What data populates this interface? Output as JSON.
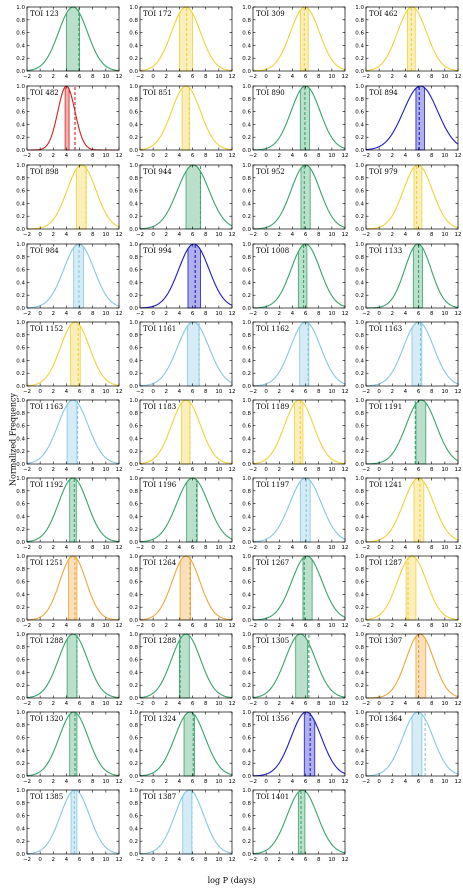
{
  "figure": {
    "xlabel": "log P (days)",
    "ylabel": "Normalized Frequency"
  },
  "chart_data": {
    "type": "line",
    "xlim": [
      -2,
      12
    ],
    "ylim": [
      0,
      1.0
    ],
    "x_ticks": [
      -2,
      0,
      2,
      4,
      6,
      8,
      10,
      12
    ],
    "y_ticks": [
      0.0,
      0.2,
      0.4,
      0.6,
      0.8,
      1.0
    ],
    "x_tick_labels": [
      "−2",
      "0",
      "2",
      "4",
      "6",
      "8",
      "10",
      "12"
    ],
    "y_tick_labels": [
      "0.0",
      "0.2",
      "0.4",
      "0.6",
      "0.8",
      "1.0"
    ],
    "grid": false,
    "colors": {
      "green": "#3aa36a",
      "yellow": "#f2d13a",
      "lightblue": "#86c7e3",
      "blue": "#1c1cc9",
      "red": "#d62020",
      "orange": "#eea63c"
    },
    "panels": [
      {
        "label": "TOI 123",
        "color": "green",
        "mu": 5.0,
        "sigma": 2.2,
        "band": [
          4.0,
          6.0
        ],
        "dashed": 5.9
      },
      {
        "label": "TOI 172",
        "color": "yellow",
        "mu": 5.0,
        "sigma": 2.2,
        "band": [
          4.0,
          6.0
        ],
        "dashed": 5.1
      },
      {
        "label": "TOI 309",
        "color": "yellow",
        "mu": 5.9,
        "sigma": 2.2,
        "band": [
          5.2,
          6.4
        ],
        "dashed": 5.8
      },
      {
        "label": "TOI 462",
        "color": "yellow",
        "mu": 5.0,
        "sigma": 2.2,
        "band": [
          4.3,
          5.5
        ],
        "dashed": 4.9
      },
      {
        "label": "TOI 482",
        "color": "red",
        "mu": 4.0,
        "sigma": 1.3,
        "band": [
          3.8,
          4.4
        ],
        "dashed": 5.3
      },
      {
        "label": "TOI 851",
        "color": "yellow",
        "mu": 5.0,
        "sigma": 2.2,
        "band": [
          4.4,
          5.5
        ],
        "dashed": 5.5
      },
      {
        "label": "TOI 890",
        "color": "green",
        "mu": 6.0,
        "sigma": 2.2,
        "band": [
          5.2,
          6.6
        ],
        "dashed": 5.9
      },
      {
        "label": "TOI 894",
        "color": "blue",
        "mu": 6.3,
        "sigma": 2.6,
        "band": [
          5.6,
          6.9
        ],
        "dashed": 6.1
      },
      {
        "label": "TOI 898",
        "color": "yellow",
        "mu": 6.3,
        "sigma": 2.2,
        "band": [
          5.5,
          7.0
        ],
        "dashed": 7.0
      },
      {
        "label": "TOI 944",
        "color": "green",
        "mu": 6.1,
        "sigma": 2.4,
        "band": [
          5.0,
          7.2
        ],
        "dashed": 7.2
      },
      {
        "label": "TOI 952",
        "color": "green",
        "mu": 6.0,
        "sigma": 2.2,
        "band": [
          5.3,
          6.7
        ],
        "dashed": 5.8
      },
      {
        "label": "TOI 979",
        "color": "yellow",
        "mu": 5.9,
        "sigma": 2.2,
        "band": [
          5.3,
          6.5
        ],
        "dashed": 5.7
      },
      {
        "label": "TOI 984",
        "color": "lightblue",
        "mu": 5.9,
        "sigma": 2.3,
        "band": [
          5.1,
          6.6
        ],
        "dashed": 5.9
      },
      {
        "label": "TOI 994",
        "color": "blue",
        "mu": 6.2,
        "sigma": 2.3,
        "band": [
          5.3,
          7.2
        ],
        "dashed": 6.4
      },
      {
        "label": "TOI 1008",
        "color": "green",
        "mu": 6.0,
        "sigma": 2.2,
        "band": [
          4.9,
          6.2
        ],
        "dashed": 5.7
      },
      {
        "label": "TOI 1133",
        "color": "green",
        "mu": 5.9,
        "sigma": 2.0,
        "band": [
          5.2,
          6.6
        ],
        "dashed": 6.0
      },
      {
        "label": "TOI 1152",
        "color": "yellow",
        "mu": 5.3,
        "sigma": 2.2,
        "band": [
          4.6,
          6.1
        ],
        "dashed": 5.8
      },
      {
        "label": "TOI 1161",
        "color": "lightblue",
        "mu": 6.1,
        "sigma": 2.4,
        "band": [
          5.2,
          7.0
        ],
        "dashed": 7.0
      },
      {
        "label": "TOI 1162",
        "color": "lightblue",
        "mu": 6.0,
        "sigma": 2.3,
        "band": [
          5.1,
          6.5
        ],
        "dashed": 6.4
      },
      {
        "label": "TOI 1163",
        "color": "lightblue",
        "mu": 6.0,
        "sigma": 2.3,
        "band": [
          5.0,
          6.5
        ],
        "dashed": 6.3
      },
      {
        "label": "TOI 1163",
        "color": "lightblue",
        "mu": 5.0,
        "sigma": 2.3,
        "band": [
          4.1,
          5.6
        ],
        "dashed": 5.7
      },
      {
        "label": "TOI 1183",
        "color": "yellow",
        "mu": 5.0,
        "sigma": 2.2,
        "band": [
          4.3,
          5.6
        ],
        "dashed": 5.6
      },
      {
        "label": "TOI 1189",
        "color": "yellow",
        "mu": 5.0,
        "sigma": 2.2,
        "band": [
          4.3,
          5.6
        ],
        "dashed": 5.2
      },
      {
        "label": "TOI 1191",
        "color": "green",
        "mu": 6.4,
        "sigma": 2.3,
        "band": [
          5.6,
          7.1
        ],
        "dashed": 5.5
      },
      {
        "label": "TOI 1192",
        "color": "green",
        "mu": 5.0,
        "sigma": 2.2,
        "band": [
          4.5,
          5.5
        ],
        "dashed": 5.2
      },
      {
        "label": "TOI 1196",
        "color": "green",
        "mu": 6.0,
        "sigma": 2.4,
        "band": [
          5.1,
          6.7
        ],
        "dashed": 6.6
      },
      {
        "label": "TOI 1197",
        "color": "lightblue",
        "mu": 6.0,
        "sigma": 2.4,
        "band": [
          5.2,
          6.7
        ],
        "dashed": 6.1
      },
      {
        "label": "TOI 1241",
        "color": "yellow",
        "mu": 6.0,
        "sigma": 2.3,
        "band": [
          5.3,
          6.8
        ],
        "dashed": 6.2
      },
      {
        "label": "TOI 1251",
        "color": "orange",
        "mu": 5.0,
        "sigma": 2.0,
        "band": [
          4.3,
          5.6
        ],
        "dashed": 5.3
      },
      {
        "label": "TOI 1264",
        "color": "orange",
        "mu": 5.0,
        "sigma": 2.1,
        "band": [
          4.1,
          5.7
        ],
        "dashed": 5.6
      },
      {
        "label": "TOI 1267",
        "color": "green",
        "mu": 6.2,
        "sigma": 2.3,
        "band": [
          5.6,
          7.0
        ],
        "dashed": 5.8
      },
      {
        "label": "TOI 1287",
        "color": "yellow",
        "mu": 5.0,
        "sigma": 2.2,
        "band": [
          4.1,
          5.6
        ],
        "dashed": 4.4
      },
      {
        "label": "TOI 1288",
        "color": "green",
        "mu": 5.0,
        "sigma": 2.2,
        "band": [
          4.1,
          5.6
        ],
        "dashed": 5.6
      },
      {
        "label": "TOI 1288",
        "color": "green",
        "mu": 5.0,
        "sigma": 2.2,
        "band": [
          4.0,
          5.5
        ],
        "dashed": 4.1
      },
      {
        "label": "TOI 1305",
        "color": "green",
        "mu": 5.2,
        "sigma": 2.3,
        "band": [
          4.5,
          6.3
        ],
        "dashed": 6.5
      },
      {
        "label": "TOI 1307",
        "color": "orange",
        "mu": 6.2,
        "sigma": 2.1,
        "band": [
          5.6,
          7.1
        ],
        "dashed": 6.0
      },
      {
        "label": "TOI 1320",
        "color": "green",
        "mu": 5.1,
        "sigma": 2.2,
        "band": [
          4.5,
          5.6
        ],
        "dashed": 5.3
      },
      {
        "label": "TOI 1324",
        "color": "green",
        "mu": 5.6,
        "sigma": 2.3,
        "band": [
          4.7,
          6.3
        ],
        "dashed": 6.1
      },
      {
        "label": "TOI 1356",
        "color": "blue",
        "mu": 6.1,
        "sigma": 2.3,
        "band": [
          5.8,
          7.4
        ],
        "dashed": 6.7
      },
      {
        "label": "TOI 1364",
        "color": "lightblue",
        "mu": 5.9,
        "sigma": 2.3,
        "band": [
          5.0,
          6.5
        ],
        "dashed": 7.0
      },
      {
        "label": "TOI 1385",
        "color": "lightblue",
        "mu": 5.3,
        "sigma": 2.2,
        "band": [
          4.7,
          5.6
        ],
        "dashed": 5.2
      },
      {
        "label": "TOI 1387",
        "color": "lightblue",
        "mu": 5.5,
        "sigma": 2.2,
        "band": [
          4.5,
          5.9
        ],
        "dashed": 5.9
      },
      {
        "label": "TOI 1401",
        "color": "green",
        "mu": 5.5,
        "sigma": 2.3,
        "band": [
          4.9,
          5.9
        ],
        "dashed": 5.3
      }
    ]
  }
}
